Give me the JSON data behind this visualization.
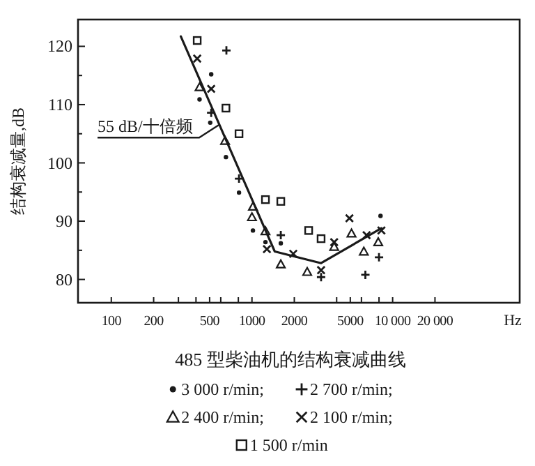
{
  "chart_data": {
    "type": "scatter",
    "title": "485 型柴油机的结构衰减曲线",
    "xlabel": "Hz",
    "ylabel": "结构衰减量,dB",
    "log": "x",
    "grid": false,
    "legend": "bottom",
    "xlim": [
      58,
      80000
    ],
    "ylim": [
      76,
      124.6
    ],
    "xticks": [
      100,
      200,
      {
        "value": 300,
        "label": null
      },
      {
        "value": 400,
        "label": null
      },
      500,
      {
        "value": 600,
        "label": null
      },
      {
        "value": 800,
        "label": null
      },
      1000,
      2000,
      {
        "value": 4000,
        "label": null
      },
      5000,
      {
        "value": 6000,
        "label": null
      },
      {
        "value": 8000,
        "label": null
      },
      {
        "value": 10000,
        "label": "10 000"
      },
      {
        "value": 20000,
        "label": "20 000"
      }
    ],
    "yticks": [
      80,
      {
        "value": 85,
        "label": null
      },
      90,
      {
        "value": 95,
        "label": null
      },
      100,
      {
        "value": 105,
        "label": null
      },
      110,
      {
        "value": 115,
        "label": null
      },
      120
    ],
    "annotations": [
      {
        "text": "55 dB/十倍频",
        "x": 580,
        "y": 106.5
      }
    ],
    "series": [
      {
        "name": "3 000 r/min;",
        "marker": "circle",
        "color": "#1a1a1a",
        "x": [
          424,
          513,
          505,
          653,
          809,
          1016,
          1247,
          1603,
          8200
        ],
        "values": [
          110.9,
          115.2,
          106.9,
          101,
          94.9,
          88.4,
          86.4,
          86.2,
          90.9
        ]
      },
      {
        "name": "2 700 r/min;",
        "marker": "plus",
        "color": "#1a1a1a",
        "x": [
          658,
          513,
          809,
          1603,
          3100,
          6400,
          8000
        ],
        "values": [
          119.3,
          108.6,
          97.3,
          87.6,
          80.4,
          80.8,
          83.8
        ]
      },
      {
        "name": "2 400 r/min;",
        "marker": "triangle",
        "color": "#1a1a1a",
        "x": [
          424,
          644,
          1016,
          1000,
          1247,
          1603,
          2470,
          3840,
          5100,
          6240,
          7900
        ],
        "values": [
          113,
          103.8,
          92.5,
          90.7,
          88.3,
          82.6,
          81.3,
          85.6,
          87.9,
          84.8,
          86.4
        ]
      },
      {
        "name": "2 100 r/min;",
        "marker": "cross",
        "color": "#1a1a1a",
        "x": [
          408,
          513,
          1277,
          1966,
          3100,
          3840,
          4930,
          6530,
          8320
        ],
        "values": [
          117.9,
          112.7,
          85.2,
          84.4,
          81.6,
          86.4,
          90.5,
          87.6,
          88.4
        ]
      },
      {
        "name": "1 500 r/min",
        "marker": "square",
        "color": "#1a1a1a",
        "x": [
          408,
          653,
          809,
          1247,
          1603,
          2530,
          3100
        ],
        "values": [
          121,
          109.4,
          105,
          93.7,
          93.4,
          88.4,
          87
        ]
      },
      {
        "type": "line",
        "marker": "none",
        "line_style": "solid",
        "color": "#1a1a1a",
        "x": [
          312,
          1452,
          3100,
          8320
        ],
        "values": [
          121.7,
          84.8,
          82.8,
          88.8
        ]
      }
    ]
  }
}
